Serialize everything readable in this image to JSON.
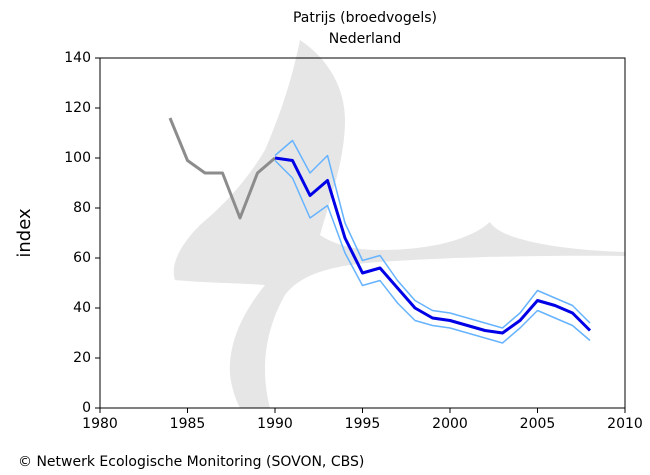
{
  "chart_data": {
    "type": "line",
    "title": "Patrijs (broedvogels)",
    "subtitle": "Nederland",
    "y_label": "index",
    "footer": "© Netwerk Ecologische Monitoring (SOVON, CBS)",
    "xlim": [
      1980,
      2010
    ],
    "xticks": [
      1980,
      1985,
      1990,
      1995,
      2000,
      2005,
      2010
    ],
    "ylim": [
      0,
      140
    ],
    "yticks": [
      0,
      20,
      40,
      60,
      80,
      100,
      120,
      140
    ],
    "grid": false,
    "series": [
      {
        "color": "#8c8c8c",
        "width": 3,
        "x": [
          1984,
          1985,
          1986,
          1987,
          1988,
          1989,
          1990
        ],
        "values": [
          116,
          99,
          94,
          94,
          76,
          94,
          100
        ]
      },
      {
        "color": "#66b3ff",
        "width": 1.5,
        "x": [
          1990,
          1991,
          1992,
          1993,
          1994,
          1995,
          1996,
          1997,
          1998,
          1999,
          2000,
          2001,
          2002,
          2003,
          2004,
          2005,
          2006,
          2007,
          2008
        ],
        "values": [
          101,
          107,
          94,
          101,
          74,
          59,
          61,
          51,
          43,
          39,
          38,
          36,
          34,
          32,
          38,
          47,
          44,
          41,
          34
        ]
      },
      {
        "color": "#66b3ff",
        "width": 1.5,
        "x": [
          1990,
          1991,
          1992,
          1993,
          1994,
          1995,
          1996,
          1997,
          1998,
          1999,
          2000,
          2001,
          2002,
          2003,
          2004,
          2005,
          2006,
          2007,
          2008
        ],
        "values": [
          99,
          92,
          76,
          81,
          62,
          49,
          51,
          42,
          35,
          33,
          32,
          30,
          28,
          26,
          32,
          39,
          36,
          33,
          27
        ]
      },
      {
        "color": "#0000e6",
        "width": 3,
        "x": [
          1990,
          1991,
          1992,
          1993,
          1994,
          1995,
          1996,
          1997,
          1998,
          1999,
          2000,
          2001,
          2002,
          2003,
          2004,
          2005,
          2006,
          2007,
          2008
        ],
        "values": [
          100,
          99,
          85,
          91,
          68,
          54,
          56,
          48,
          40,
          36,
          35,
          33,
          31,
          30,
          35,
          43,
          41,
          38,
          31
        ]
      }
    ]
  }
}
